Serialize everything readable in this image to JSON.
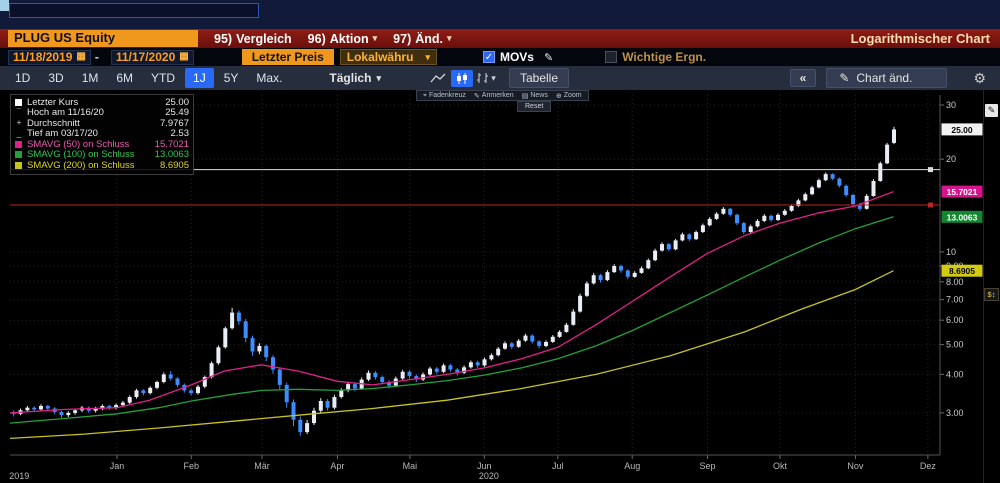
{
  "menubar": {
    "security": "PLUG US Equity",
    "items": [
      {
        "num": "95)",
        "label": "Vergleich"
      },
      {
        "num": "96)",
        "label": "Aktion"
      },
      {
        "num": "97)",
        "label": "Änd."
      }
    ],
    "title": "Logarithmischer Chart"
  },
  "fieldbar": {
    "date_from": "11/18/2019",
    "dash": "-",
    "date_to": "11/17/2020",
    "price_field": "Letzter Preis",
    "currency": "Lokalwähru",
    "movs_label": "MOVs",
    "movs_checked": true,
    "events_label": "Wichtige Ergn.",
    "events_checked": false
  },
  "toolbar": {
    "ranges": [
      "1D",
      "3D",
      "1M",
      "6M",
      "YTD",
      "1J",
      "5Y",
      "Max."
    ],
    "active_range": "1J",
    "period": "Täglich",
    "table_label": "Tabelle",
    "collapse_label": "«",
    "chart_edit_label": "Chart änd.",
    "reset_label": "Reset",
    "hover_tools": [
      {
        "icon": "⌖",
        "label": "Fadenkreuz"
      },
      {
        "icon": "✎",
        "label": "Anmerken"
      },
      {
        "icon": "▤",
        "label": "News"
      },
      {
        "icon": "⊕",
        "label": "Zoom"
      }
    ]
  },
  "icons": {
    "gear": "⚙",
    "pencil": "✎",
    "caret": "▾",
    "calendar": "▦",
    "check": "✓",
    "axis_tool": "$↕"
  },
  "legend": {
    "rows": [
      {
        "swatch": "#ffffff",
        "glyph": null,
        "label": "Letzter Kurs",
        "value": "25.00",
        "color": "#e8e8e8"
      },
      {
        "swatch": null,
        "glyph": "¯",
        "label": "Hoch am 11/16/20",
        "value": "25.49",
        "color": "#e8e8e8"
      },
      {
        "swatch": null,
        "glyph": "+",
        "label": "Durchschnitt",
        "value": "7.9767",
        "color": "#e8e8e8"
      },
      {
        "swatch": null,
        "glyph": "_",
        "label": "Tief am 03/17/20",
        "value": "2.53",
        "color": "#e8e8e8"
      },
      {
        "swatch": "#e0218a",
        "glyph": null,
        "label": "SMAVG (50) on Schluss",
        "value": "15.7021",
        "color": "#f05ab4"
      },
      {
        "swatch": "#23a03c",
        "glyph": null,
        "label": "SMAVG (100) on Schluss",
        "value": "13.0063",
        "color": "#35c455"
      },
      {
        "swatch": "#c8c21f",
        "glyph": null,
        "label": "SMAVG (200) on Schluss",
        "value": "8.6905",
        "color": "#dcd52a"
      }
    ]
  },
  "chart_data": {
    "type": "candlestick",
    "title": "PLUG US Equity — Logarithmischer Chart",
    "y_scale": "log",
    "y_domain": [
      2.19,
      32.33
    ],
    "stats": {
      "last_price": 25.0,
      "high_date": "11/16/20",
      "high": 25.49,
      "average": 7.9767,
      "low_date": "03/17/20",
      "low": 2.53
    },
    "up_color": "#e9eef6",
    "down_color": "#3c8dff",
    "x_start_frac": 0.004,
    "x_end_frac": 0.9505,
    "y_ticks": [
      {
        "v": 30,
        "label": "30"
      },
      {
        "v": 20,
        "label": "20"
      },
      {
        "v": 10,
        "label": "10"
      },
      {
        "v": 9,
        "label": "9.00"
      },
      {
        "v": 8,
        "label": "8.00"
      },
      {
        "v": 7,
        "label": "7.00"
      },
      {
        "v": 6,
        "label": "6.00"
      },
      {
        "v": 5,
        "label": "5.00"
      },
      {
        "v": 4,
        "label": "4.00"
      },
      {
        "v": 3,
        "label": "3.00"
      }
    ],
    "price_labels": [
      {
        "v": 25.0,
        "label": "25.00",
        "bg": "#f2f2f2",
        "fg": "#000000"
      },
      {
        "v": 15.7021,
        "label": "15.7021",
        "bg": "#d4158c",
        "fg": "#ffffff"
      },
      {
        "v": 13.0063,
        "label": "13.0063",
        "bg": "#13862f",
        "fg": "#ffffff"
      },
      {
        "v": 8.6905,
        "label": "8.6905",
        "bg": "#d3ca12",
        "fg": "#000000"
      }
    ],
    "x_months": [
      {
        "label": "Jan",
        "f": 0.115
      },
      {
        "label": "Feb",
        "f": 0.195
      },
      {
        "label": "Mär",
        "f": 0.271
      },
      {
        "label": "Apr",
        "f": 0.352
      },
      {
        "label": "Mai",
        "f": 0.43
      },
      {
        "label": "Jun",
        "f": 0.51
      },
      {
        "label": "Jul",
        "f": 0.589
      },
      {
        "label": "Aug",
        "f": 0.669
      },
      {
        "label": "Sep",
        "f": 0.75
      },
      {
        "label": "Okt",
        "f": 0.828
      },
      {
        "label": "Nov",
        "f": 0.909
      },
      {
        "label": "Dez",
        "f": 0.987
      }
    ],
    "years": [
      {
        "label": "2019",
        "f": 0.01
      },
      {
        "label": "2020",
        "f": 0.515
      }
    ],
    "annotations": [
      {
        "type": "hline",
        "price": 18.5,
        "color": "#dcdcdc"
      },
      {
        "type": "hline",
        "price": 14.2,
        "color": "#b32424"
      }
    ],
    "ma_lines": [
      {
        "name": "SMAVG(50)",
        "color": "#e0218a",
        "points": [
          [
            0.0,
            3.0
          ],
          [
            0.06,
            3.08
          ],
          [
            0.115,
            3.12
          ],
          [
            0.15,
            3.3
          ],
          [
            0.195,
            3.7
          ],
          [
            0.23,
            4.1
          ],
          [
            0.27,
            4.3
          ],
          [
            0.31,
            4.1
          ],
          [
            0.352,
            3.8
          ],
          [
            0.39,
            3.7
          ],
          [
            0.43,
            3.85
          ],
          [
            0.47,
            4.0
          ],
          [
            0.51,
            4.2
          ],
          [
            0.55,
            4.5
          ],
          [
            0.589,
            4.9
          ],
          [
            0.63,
            5.8
          ],
          [
            0.669,
            6.9
          ],
          [
            0.71,
            8.3
          ],
          [
            0.75,
            9.9
          ],
          [
            0.79,
            11.3
          ],
          [
            0.828,
            12.4
          ],
          [
            0.87,
            13.4
          ],
          [
            0.909,
            14.1
          ],
          [
            0.95,
            15.7
          ]
        ]
      },
      {
        "name": "SMAVG(100)",
        "color": "#23a03c",
        "points": [
          [
            0.0,
            2.78
          ],
          [
            0.06,
            2.88
          ],
          [
            0.115,
            2.98
          ],
          [
            0.16,
            3.12
          ],
          [
            0.195,
            3.28
          ],
          [
            0.24,
            3.45
          ],
          [
            0.271,
            3.55
          ],
          [
            0.31,
            3.58
          ],
          [
            0.352,
            3.55
          ],
          [
            0.39,
            3.6
          ],
          [
            0.43,
            3.7
          ],
          [
            0.47,
            3.82
          ],
          [
            0.51,
            3.98
          ],
          [
            0.55,
            4.2
          ],
          [
            0.589,
            4.5
          ],
          [
            0.63,
            4.95
          ],
          [
            0.669,
            5.55
          ],
          [
            0.71,
            6.35
          ],
          [
            0.75,
            7.25
          ],
          [
            0.79,
            8.3
          ],
          [
            0.828,
            9.4
          ],
          [
            0.87,
            10.7
          ],
          [
            0.909,
            11.9
          ],
          [
            0.95,
            13.01
          ]
        ]
      },
      {
        "name": "SMAVG(200)",
        "color": "#c8c21f",
        "points": [
          [
            0.0,
            2.48
          ],
          [
            0.08,
            2.56
          ],
          [
            0.16,
            2.68
          ],
          [
            0.24,
            2.82
          ],
          [
            0.31,
            2.95
          ],
          [
            0.39,
            3.1
          ],
          [
            0.47,
            3.3
          ],
          [
            0.55,
            3.6
          ],
          [
            0.63,
            4.0
          ],
          [
            0.71,
            4.6
          ],
          [
            0.79,
            5.5
          ],
          [
            0.85,
            6.5
          ],
          [
            0.909,
            7.55
          ],
          [
            0.95,
            8.69
          ]
        ]
      }
    ],
    "candles": [
      [
        3.02,
        3.06,
        2.92,
        2.98
      ],
      [
        2.98,
        3.1,
        2.95,
        3.06
      ],
      [
        3.06,
        3.16,
        3.02,
        3.12
      ],
      [
        3.12,
        3.15,
        3.02,
        3.08
      ],
      [
        3.08,
        3.2,
        3.05,
        3.16
      ],
      [
        3.16,
        3.19,
        3.05,
        3.1
      ],
      [
        3.1,
        3.13,
        2.97,
        3.02
      ],
      [
        3.02,
        3.05,
        2.89,
        2.95
      ],
      [
        2.95,
        3.04,
        2.91,
        3.0
      ],
      [
        3.0,
        3.1,
        2.96,
        3.06
      ],
      [
        3.06,
        3.16,
        3.02,
        3.12
      ],
      [
        3.12,
        3.15,
        3.0,
        3.05
      ],
      [
        3.05,
        3.14,
        3.01,
        3.1
      ],
      [
        3.1,
        3.2,
        3.06,
        3.16
      ],
      [
        3.16,
        3.19,
        3.07,
        3.12
      ],
      [
        3.12,
        3.22,
        3.08,
        3.18
      ],
      [
        3.18,
        3.28,
        3.14,
        3.24
      ],
      [
        3.24,
        3.42,
        3.2,
        3.38
      ],
      [
        3.38,
        3.59,
        3.34,
        3.55
      ],
      [
        3.55,
        3.58,
        3.42,
        3.48
      ],
      [
        3.48,
        3.66,
        3.44,
        3.62
      ],
      [
        3.62,
        3.82,
        3.58,
        3.78
      ],
      [
        3.78,
        4.06,
        3.74,
        4.0
      ],
      [
        4.0,
        4.1,
        3.82,
        3.88
      ],
      [
        3.88,
        3.92,
        3.64,
        3.7
      ],
      [
        3.7,
        3.74,
        3.49,
        3.55
      ],
      [
        3.55,
        3.6,
        3.42,
        3.48
      ],
      [
        3.48,
        3.7,
        3.44,
        3.65
      ],
      [
        3.65,
        3.97,
        3.61,
        3.92
      ],
      [
        3.92,
        4.41,
        3.88,
        4.35
      ],
      [
        4.35,
        4.97,
        4.3,
        4.9
      ],
      [
        4.9,
        5.72,
        4.85,
        5.65
      ],
      [
        5.65,
        6.58,
        5.6,
        6.35
      ],
      [
        6.35,
        6.45,
        5.8,
        5.95
      ],
      [
        5.95,
        6.05,
        5.1,
        5.25
      ],
      [
        5.25,
        5.35,
        4.6,
        4.75
      ],
      [
        4.75,
        5.05,
        4.65,
        4.95
      ],
      [
        4.95,
        5.0,
        4.42,
        4.55
      ],
      [
        4.55,
        4.62,
        4.02,
        4.15
      ],
      [
        4.15,
        4.22,
        3.58,
        3.7
      ],
      [
        3.7,
        3.76,
        3.12,
        3.25
      ],
      [
        3.25,
        3.32,
        2.72,
        2.85
      ],
      [
        2.85,
        2.92,
        2.53,
        2.6
      ],
      [
        2.6,
        2.85,
        2.56,
        2.78
      ],
      [
        2.78,
        3.12,
        2.74,
        3.05
      ],
      [
        3.05,
        3.35,
        3.0,
        3.28
      ],
      [
        3.28,
        3.33,
        3.05,
        3.12
      ],
      [
        3.12,
        3.44,
        3.08,
        3.38
      ],
      [
        3.38,
        3.61,
        3.34,
        3.55
      ],
      [
        3.55,
        3.79,
        3.5,
        3.72
      ],
      [
        3.72,
        3.77,
        3.53,
        3.6
      ],
      [
        3.6,
        3.91,
        3.56,
        3.85
      ],
      [
        3.85,
        4.12,
        3.81,
        4.05
      ],
      [
        4.05,
        4.1,
        3.85,
        3.92
      ],
      [
        3.92,
        3.97,
        3.71,
        3.78
      ],
      [
        3.78,
        3.83,
        3.61,
        3.68
      ],
      [
        3.68,
        3.94,
        3.64,
        3.88
      ],
      [
        3.88,
        4.14,
        3.84,
        4.08
      ],
      [
        4.08,
        4.13,
        3.88,
        3.95
      ],
      [
        3.95,
        4.0,
        3.78,
        3.85
      ],
      [
        3.85,
        4.06,
        3.81,
        4.0
      ],
      [
        4.0,
        4.24,
        3.96,
        4.18
      ],
      [
        4.18,
        4.23,
        4.0,
        4.08
      ],
      [
        4.08,
        4.34,
        4.04,
        4.28
      ],
      [
        4.28,
        4.33,
        4.08,
        4.15
      ],
      [
        4.15,
        4.2,
        3.97,
        4.05
      ],
      [
        4.05,
        4.28,
        4.01,
        4.22
      ],
      [
        4.22,
        4.44,
        4.18,
        4.38
      ],
      [
        4.38,
        4.43,
        4.2,
        4.28
      ],
      [
        4.28,
        4.54,
        4.24,
        4.48
      ],
      [
        4.48,
        4.68,
        4.44,
        4.62
      ],
      [
        4.62,
        4.91,
        4.58,
        4.85
      ],
      [
        4.85,
        5.12,
        4.81,
        5.05
      ],
      [
        5.05,
        5.1,
        4.84,
        4.92
      ],
      [
        4.92,
        5.21,
        4.88,
        5.15
      ],
      [
        5.15,
        5.42,
        5.11,
        5.35
      ],
      [
        5.35,
        5.4,
        5.04,
        5.12
      ],
      [
        5.12,
        5.17,
        4.86,
        4.95
      ],
      [
        4.95,
        5.16,
        4.9,
        5.1
      ],
      [
        5.1,
        5.37,
        5.06,
        5.3
      ],
      [
        5.3,
        5.57,
        5.26,
        5.5
      ],
      [
        5.5,
        5.88,
        5.46,
        5.8
      ],
      [
        5.8,
        6.52,
        5.76,
        6.4
      ],
      [
        6.4,
        7.32,
        6.35,
        7.2
      ],
      [
        7.2,
        8.02,
        7.14,
        7.9
      ],
      [
        7.9,
        8.55,
        7.84,
        8.4
      ],
      [
        8.4,
        8.48,
        7.95,
        8.1
      ],
      [
        8.1,
        8.72,
        8.04,
        8.6
      ],
      [
        8.6,
        9.12,
        8.54,
        9.0
      ],
      [
        9.0,
        9.08,
        8.56,
        8.7
      ],
      [
        8.7,
        8.78,
        8.16,
        8.3
      ],
      [
        8.3,
        8.66,
        8.24,
        8.55
      ],
      [
        8.55,
        8.97,
        8.49,
        8.85
      ],
      [
        8.85,
        9.52,
        8.79,
        9.4
      ],
      [
        9.4,
        10.24,
        9.33,
        10.1
      ],
      [
        10.1,
        10.74,
        10.02,
        10.6
      ],
      [
        10.6,
        10.7,
        10.05,
        10.2
      ],
      [
        10.2,
        11.02,
        10.12,
        10.9
      ],
      [
        10.9,
        11.55,
        10.82,
        11.4
      ],
      [
        11.4,
        11.5,
        10.84,
        11.0
      ],
      [
        11.0,
        11.74,
        10.92,
        11.6
      ],
      [
        11.6,
        12.36,
        11.52,
        12.2
      ],
      [
        12.2,
        12.96,
        12.1,
        12.8
      ],
      [
        12.8,
        13.46,
        12.7,
        13.3
      ],
      [
        13.3,
        13.98,
        13.2,
        13.8
      ],
      [
        13.8,
        13.92,
        13.02,
        13.2
      ],
      [
        13.2,
        13.32,
        12.22,
        12.4
      ],
      [
        12.4,
        12.52,
        11.42,
        11.6
      ],
      [
        11.6,
        12.26,
        11.5,
        12.1
      ],
      [
        12.1,
        12.76,
        12.0,
        12.6
      ],
      [
        12.6,
        13.26,
        12.5,
        13.1
      ],
      [
        13.1,
        13.22,
        12.52,
        12.7
      ],
      [
        12.7,
        13.36,
        12.6,
        13.2
      ],
      [
        13.2,
        13.78,
        13.1,
        13.6
      ],
      [
        13.6,
        14.28,
        13.5,
        14.1
      ],
      [
        14.1,
        14.88,
        14.0,
        14.7
      ],
      [
        14.7,
        15.58,
        14.6,
        15.4
      ],
      [
        15.4,
        16.4,
        15.28,
        16.2
      ],
      [
        16.2,
        17.3,
        16.08,
        17.1
      ],
      [
        17.1,
        18.12,
        16.98,
        17.9
      ],
      [
        17.9,
        18.0,
        17.1,
        17.3
      ],
      [
        17.3,
        17.45,
        16.2,
        16.4
      ],
      [
        16.4,
        16.55,
        15.1,
        15.3
      ],
      [
        15.3,
        15.45,
        14.1,
        14.3
      ],
      [
        14.3,
        14.45,
        13.6,
        13.8
      ],
      [
        13.8,
        15.42,
        13.72,
        15.2
      ],
      [
        15.2,
        17.22,
        15.1,
        17.0
      ],
      [
        17.0,
        19.65,
        16.9,
        19.4
      ],
      [
        19.4,
        22.6,
        19.28,
        22.3
      ],
      [
        22.6,
        25.49,
        22.4,
        25.0
      ]
    ]
  }
}
